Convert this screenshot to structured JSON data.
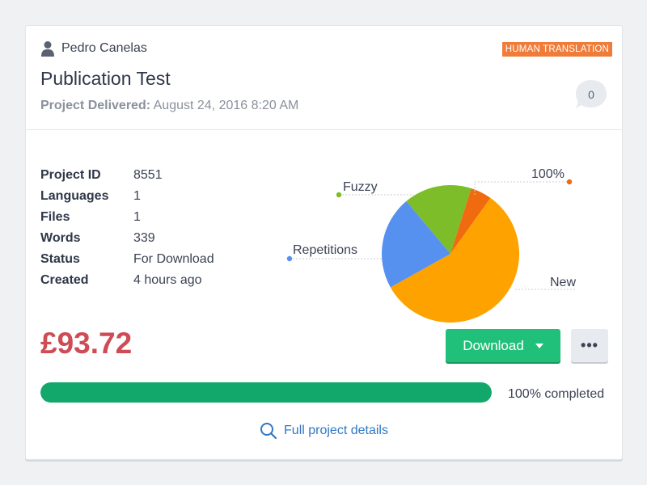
{
  "card": {
    "user_name": "Pedro Canelas",
    "badge": "HUMAN TRANSLATION",
    "title": "Publication Test",
    "delivered_label": "Project Delivered:",
    "delivered_date": "August 24, 2016 8:20 AM",
    "comment_count": "0"
  },
  "meta": [
    {
      "label": "Project ID",
      "value": "8551"
    },
    {
      "label": "Languages",
      "value": "1"
    },
    {
      "label": "Files",
      "value": "1"
    },
    {
      "label": "Words",
      "value": "339"
    },
    {
      "label": "Status",
      "value": "For Download"
    },
    {
      "label": "Created",
      "value": "4 hours ago"
    }
  ],
  "chart_data": {
    "type": "pie",
    "categories": [
      "Fuzzy",
      "100%",
      "New",
      "Repetitions"
    ],
    "values": [
      16,
      5,
      57,
      22
    ],
    "colors": [
      "#7cbd29",
      "#f06a0f",
      "#fea200",
      "#5691f0"
    ]
  },
  "price": "£93.72",
  "actions": {
    "download_label": "Download",
    "more_label": "•••"
  },
  "progress": {
    "value": 1.0,
    "label": "100% completed"
  },
  "details_link": "Full project details",
  "colors": {
    "accent_green": "#21c07a",
    "price_red": "#cf4b55",
    "badge_orange": "#f07c3a",
    "link_blue": "#2f78c4"
  }
}
